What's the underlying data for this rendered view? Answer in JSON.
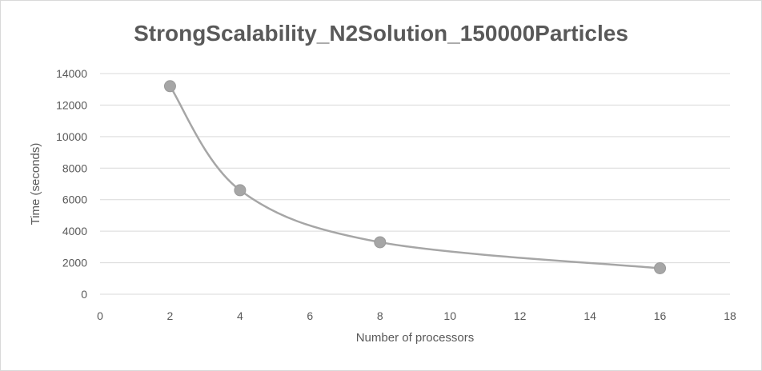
{
  "chart_data": {
    "type": "scatter",
    "title": "StrongScalability_N2Solution_150000Particles",
    "xlabel": "Number of processors",
    "ylabel": "Time (seconds)",
    "xlim": [
      0,
      18
    ],
    "ylim": [
      0,
      14000
    ],
    "x_ticks": [
      0,
      2,
      4,
      6,
      8,
      10,
      12,
      14,
      16,
      18
    ],
    "y_ticks": [
      0,
      2000,
      4000,
      6000,
      8000,
      10000,
      12000,
      14000
    ],
    "grid": "horizontal",
    "smooth_line": true,
    "series": [
      {
        "x": [
          2,
          4,
          8,
          16
        ],
        "y": [
          13200,
          6600,
          3300,
          1650
        ],
        "color": "#a6a6a6"
      }
    ],
    "colors": {
      "marker": "#a6a6a6",
      "gridline": "#d9d9d9",
      "text": "#595959"
    }
  }
}
